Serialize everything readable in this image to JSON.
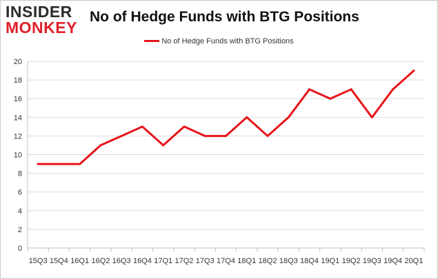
{
  "brand": {
    "line1": "INSIDER",
    "line2": "MONKEY"
  },
  "chart_data": {
    "type": "line",
    "title": "No of Hedge Funds with BTG Positions",
    "categories": [
      "15Q3",
      "15Q4",
      "16Q1",
      "16Q2",
      "16Q3",
      "16Q4",
      "17Q1",
      "17Q2",
      "17Q3",
      "17Q4",
      "18Q1",
      "18Q2",
      "18Q3",
      "18Q4",
      "19Q1",
      "19Q2",
      "19Q3",
      "19Q4",
      "20Q1"
    ],
    "series": [
      {
        "name": "No of Hedge Funds with BTG Positions",
        "values": [
          9,
          9,
          9,
          11,
          12,
          13,
          11,
          13,
          12,
          12,
          14,
          12,
          14,
          17,
          16,
          17,
          14,
          17,
          19
        ]
      }
    ],
    "ylim": [
      0,
      20
    ],
    "yticks": [
      0,
      2,
      4,
      6,
      8,
      10,
      12,
      14,
      16,
      18,
      20
    ],
    "grid": true,
    "legend": "top-center",
    "line_color": "#e8141a"
  }
}
